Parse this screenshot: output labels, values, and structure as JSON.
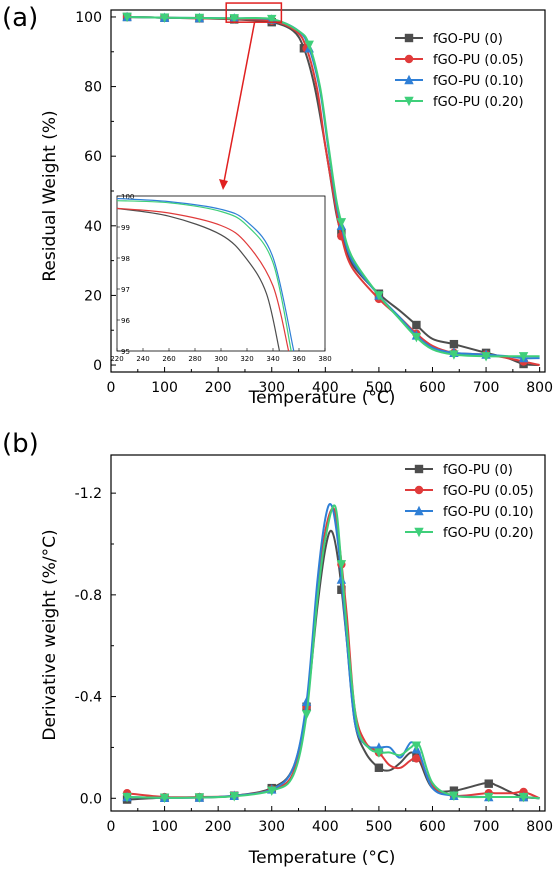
{
  "palette": {
    "fGO-PU (0)": "#4d4d4d",
    "fGO-PU (0.05)": "#e03b3b",
    "fGO-PU (0.10)": "#2f7fd6",
    "fGO-PU (0.20)": "#3fcf7a",
    "highlight": "#e02020"
  },
  "chart_data": [
    {
      "panel_label": "(a)",
      "type": "line",
      "xlabel": "Temperature (°C)",
      "ylabel": "Residual Weight (%)",
      "xlim": [
        0,
        810
      ],
      "ylim": [
        -2,
        102
      ],
      "xticks": [
        0,
        100,
        200,
        300,
        400,
        500,
        600,
        700,
        800
      ],
      "yticks": [
        0,
        20,
        40,
        60,
        80,
        100
      ],
      "legend_position": "top-right",
      "series": [
        {
          "name": "fGO-PU (0)",
          "marker": "square",
          "x": [
            30,
            100,
            165,
            230,
            300,
            340,
            360,
            380,
            400,
            420,
            430,
            450,
            500,
            540,
            570,
            600,
            640,
            700,
            740,
            770,
            800
          ],
          "y": [
            100,
            99.8,
            99.6,
            99.3,
            98.5,
            96,
            91,
            80,
            63,
            44,
            38,
            29,
            20.5,
            15.5,
            11.5,
            7.5,
            6,
            3.5,
            2,
            0.3,
            0
          ],
          "marker_x": [
            30,
            100,
            165,
            230,
            300,
            360,
            430,
            500,
            570,
            640,
            700,
            770
          ]
        },
        {
          "name": "fGO-PU (0.05)",
          "marker": "circle",
          "x": [
            30,
            100,
            165,
            230,
            300,
            345,
            365,
            385,
            400,
            420,
            430,
            450,
            500,
            540,
            570,
            600,
            640,
            700,
            740,
            770,
            800
          ],
          "y": [
            100,
            99.8,
            99.6,
            99.4,
            98.9,
            96,
            91,
            79,
            63,
            45,
            37,
            28,
            19,
            13.5,
            9,
            5.5,
            3.5,
            3,
            2,
            1,
            0
          ],
          "marker_x": [
            30,
            100,
            165,
            230,
            300,
            365,
            430,
            500,
            570,
            640,
            700,
            770
          ]
        },
        {
          "name": "fGO-PU (0.10)",
          "marker": "triangle-up",
          "x": [
            30,
            100,
            165,
            230,
            300,
            350,
            370,
            390,
            405,
            420,
            430,
            450,
            500,
            540,
            570,
            600,
            640,
            700,
            740,
            770,
            800
          ],
          "y": [
            100,
            99.8,
            99.7,
            99.6,
            99.3,
            96,
            91,
            79,
            63,
            47,
            40,
            30,
            20,
            13.5,
            8.5,
            5,
            3.5,
            3,
            2.5,
            2,
            2
          ],
          "marker_x": [
            30,
            100,
            165,
            230,
            300,
            370,
            430,
            500,
            570,
            640,
            700,
            770
          ]
        },
        {
          "name": "fGO-PU (0.20)",
          "marker": "triangle-down",
          "x": [
            30,
            100,
            165,
            230,
            300,
            350,
            370,
            390,
            405,
            420,
            430,
            450,
            500,
            540,
            570,
            600,
            640,
            700,
            740,
            770,
            800
          ],
          "y": [
            100,
            99.8,
            99.7,
            99.6,
            99.4,
            96,
            92,
            80,
            64,
            48,
            41,
            31,
            20,
            13,
            8,
            4.5,
            3,
            2.5,
            2.5,
            2.5,
            2.5
          ],
          "marker_x": [
            30,
            100,
            165,
            230,
            300,
            370,
            430,
            500,
            570,
            640,
            700,
            770
          ]
        }
      ],
      "highlight_box": {
        "x": [
          215,
          318
        ],
        "y": [
          98.5,
          104
        ]
      },
      "inset": {
        "xlim": [
          220,
          380
        ],
        "ylim": [
          95,
          100
        ],
        "xticks": [
          220,
          240,
          260,
          280,
          300,
          320,
          340,
          360,
          380
        ],
        "yticks": [
          95,
          96,
          97,
          98,
          99,
          100
        ],
        "series": [
          {
            "name": "fGO-PU (0)",
            "x": [
              220,
              260,
              300,
              320,
              335,
              345
            ],
            "y": [
              99.6,
              99.35,
              98.75,
              97.95,
              96.85,
              95
            ]
          },
          {
            "name": "fGO-PU (0.05)",
            "x": [
              220,
              260,
              300,
              320,
              340,
              352
            ],
            "y": [
              99.6,
              99.45,
              99.05,
              98.45,
              97.1,
              95
            ]
          },
          {
            "name": "fGO-PU (0.10)",
            "x": [
              220,
              260,
              300,
              320,
              340,
              356
            ],
            "y": [
              99.92,
              99.82,
              99.57,
              99.17,
              98.02,
              95
            ]
          },
          {
            "name": "fGO-PU (0.20)",
            "x": [
              220,
              260,
              300,
              320,
              340,
              354
            ],
            "y": [
              99.85,
              99.78,
              99.5,
              99.05,
              97.85,
              95
            ]
          }
        ]
      }
    },
    {
      "panel_label": "(b)",
      "type": "line",
      "xlabel": "Temperature (°C)",
      "ylabel": "Derivative weight (%/°C)",
      "xlim": [
        0,
        810
      ],
      "ylim": [
        0.05,
        -1.35
      ],
      "xticks": [
        0,
        100,
        200,
        300,
        400,
        500,
        600,
        700,
        800
      ],
      "yticks": [
        0.0,
        -0.4,
        -0.8,
        -1.2
      ],
      "ytick_labels": [
        "0.0",
        "-0.4",
        "-0.8",
        "-1.2"
      ],
      "legend_position": "top-right",
      "series": [
        {
          "name": "fGO-PU (0)",
          "marker": "square",
          "x": [
            30,
            100,
            165,
            230,
            300,
            340,
            365,
            385,
            400,
            412,
            425,
            440,
            455,
            475,
            500,
            520,
            540,
            560,
            575,
            600,
            640,
            700,
            720,
            750,
            770,
            800
          ],
          "y": [
            0.005,
            -0.002,
            -0.003,
            -0.01,
            -0.04,
            -0.12,
            -0.36,
            -0.75,
            -0.98,
            -1.05,
            -0.92,
            -0.62,
            -0.3,
            -0.18,
            -0.12,
            -0.11,
            -0.14,
            -0.18,
            -0.15,
            -0.04,
            -0.03,
            -0.06,
            -0.05,
            -0.02,
            -0.005,
            0
          ],
          "marker_x": [
            30,
            100,
            165,
            230,
            300,
            365,
            430,
            500,
            570,
            640,
            705,
            770
          ]
        },
        {
          "name": "fGO-PU (0.05)",
          "marker": "circle",
          "x": [
            30,
            100,
            165,
            230,
            300,
            340,
            365,
            385,
            400,
            415,
            425,
            440,
            455,
            475,
            500,
            520,
            540,
            560,
            575,
            600,
            640,
            700,
            720,
            750,
            770,
            800
          ],
          "y": [
            -0.02,
            -0.005,
            -0.005,
            -0.01,
            -0.035,
            -0.1,
            -0.36,
            -0.8,
            -1.05,
            -1.14,
            -1.02,
            -0.72,
            -0.35,
            -0.22,
            -0.18,
            -0.13,
            -0.12,
            -0.15,
            -0.16,
            -0.05,
            -0.01,
            -0.02,
            -0.02,
            -0.02,
            -0.025,
            0
          ],
          "marker_x": [
            30,
            100,
            165,
            230,
            300,
            365,
            430,
            500,
            570,
            640,
            705,
            770
          ]
        },
        {
          "name": "fGO-PU (0.10)",
          "marker": "triangle-up",
          "x": [
            30,
            100,
            165,
            230,
            300,
            340,
            365,
            385,
            400,
            412,
            425,
            440,
            455,
            475,
            500,
            520,
            540,
            560,
            575,
            600,
            640,
            700,
            720,
            750,
            770,
            800
          ],
          "y": [
            -0.005,
            -0.002,
            -0.003,
            -0.01,
            -0.035,
            -0.12,
            -0.38,
            -0.85,
            -1.1,
            -1.15,
            -0.98,
            -0.62,
            -0.3,
            -0.21,
            -0.2,
            -0.2,
            -0.16,
            -0.22,
            -0.18,
            -0.04,
            -0.01,
            -0.005,
            -0.005,
            -0.005,
            -0.005,
            0
          ],
          "marker_x": [
            30,
            100,
            165,
            230,
            300,
            365,
            430,
            500,
            570,
            640,
            705,
            770
          ]
        },
        {
          "name": "fGO-PU (0.20)",
          "marker": "triangle-down",
          "x": [
            30,
            100,
            165,
            230,
            300,
            340,
            365,
            385,
            400,
            418,
            430,
            445,
            460,
            480,
            500,
            520,
            540,
            560,
            575,
            600,
            640,
            700,
            720,
            750,
            770,
            800
          ],
          "y": [
            -0.005,
            -0.002,
            -0.003,
            -0.008,
            -0.03,
            -0.09,
            -0.33,
            -0.78,
            -1.02,
            -1.15,
            -0.92,
            -0.55,
            -0.28,
            -0.2,
            -0.18,
            -0.18,
            -0.17,
            -0.2,
            -0.21,
            -0.06,
            -0.01,
            -0.005,
            -0.005,
            -0.005,
            -0.005,
            0
          ],
          "marker_x": [
            30,
            100,
            165,
            230,
            300,
            365,
            430,
            500,
            570,
            640,
            705,
            770
          ]
        }
      ]
    }
  ]
}
